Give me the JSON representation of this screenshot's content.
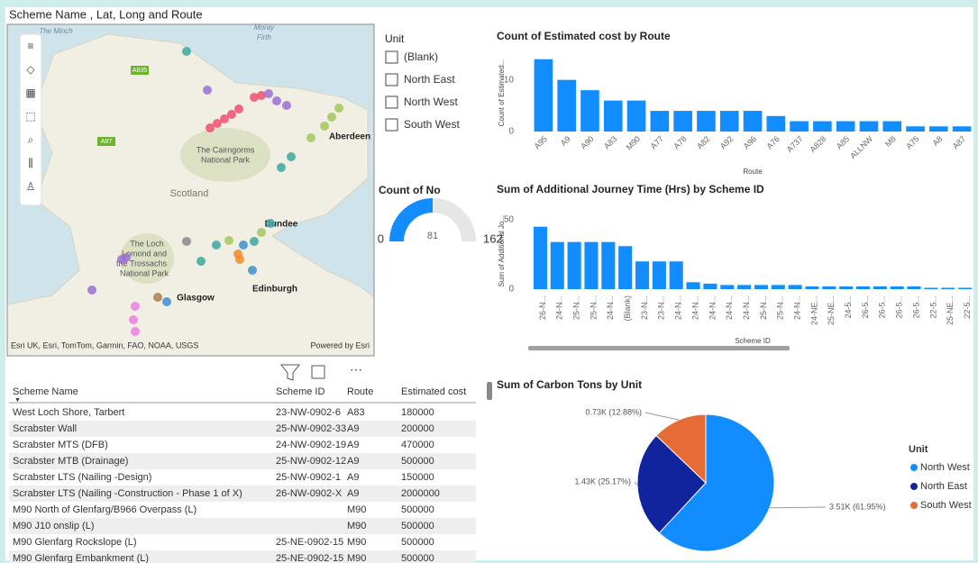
{
  "map": {
    "title": "Scheme Name , Lat, Long and Route",
    "labels": [
      "The Minch",
      "Moray",
      "Firth",
      "A835",
      "A87",
      "The Cairngorms",
      "National Park",
      "Aberdeen",
      "Scotland",
      "Dundee",
      "The Loch",
      "Lomond and",
      "the Trossachs",
      "National Park",
      "Glasgow",
      "Edinburgh"
    ],
    "attribution": "Esri UK, Esri, TomTom, Garmin, FAO, NOAA, USGS",
    "powered_by": "Powered by Esri"
  },
  "slicer": {
    "title": "Unit",
    "options": [
      "(Blank)",
      "North East",
      "North West",
      "South West"
    ]
  },
  "chart_data": [
    {
      "type": "bar",
      "title": "Count of Estimated cost by Route",
      "y_label": "Count of Estimated...",
      "x_label": "Route",
      "categories": [
        "A95",
        "A9",
        "A90",
        "A83",
        "M90",
        "A77",
        "A78",
        "A82",
        "A92",
        "A96",
        "A76",
        "A737",
        "A828",
        "A85",
        "ALLNW",
        "M8",
        "A75",
        "A8",
        "A87"
      ],
      "values": [
        14,
        10,
        8,
        6,
        6,
        4,
        4,
        4,
        4,
        4,
        3,
        2,
        2,
        2,
        2,
        2,
        1,
        1,
        1
      ],
      "color": "#118dff",
      "ylim": [
        0,
        15
      ],
      "yticks": [
        0,
        10
      ]
    },
    {
      "type": "gauge",
      "title": "Count of No",
      "value": 81,
      "min": 0,
      "max": 162,
      "color": "#118dff"
    },
    {
      "type": "bar",
      "title": "Sum of Additional Journey Time (Hrs) by Scheme ID",
      "y_label": "Sum of Additional Jo...",
      "x_label": "Scheme ID",
      "categories": [
        "26-N...",
        "24-N...",
        "25-N...",
        "25-N...",
        "24-N...",
        "(Blank)",
        "23-N...",
        "23-N...",
        "24-N...",
        "24-N...",
        "24-N...",
        "24-N...",
        "24-N...",
        "25-N...",
        "25-N...",
        "24-N...",
        "24-NE...",
        "25-NE...",
        "24-5...",
        "26-5...",
        "26-5...",
        "26-5...",
        "26-5...",
        "22-5...",
        "25-NE...",
        "22-5..."
      ],
      "values": [
        45,
        34,
        34,
        34,
        34,
        31,
        20,
        20,
        20,
        5,
        4,
        3,
        3,
        3,
        3,
        3,
        2,
        2,
        2,
        2,
        2,
        2,
        2,
        1,
        1,
        1
      ],
      "color": "#118dff",
      "ylim": [
        0,
        55
      ],
      "yticks": [
        0,
        50
      ]
    },
    {
      "type": "pie",
      "title": "Sum of Carbon Tons by Unit",
      "legend_title": "Unit",
      "categories": [
        "North West",
        "North East",
        "South West"
      ],
      "values": [
        3510,
        1430,
        730
      ],
      "value_labels": [
        "3.51K (61.95%)",
        "1.43K (25.17%)",
        "0.73K (12.88%)"
      ],
      "colors": [
        "#118dff",
        "#12239e",
        "#e66c37"
      ]
    }
  ],
  "table": {
    "columns": [
      "Scheme Name",
      "Scheme ID",
      "Route",
      "Estimated cost"
    ],
    "rows": [
      [
        "West Loch Shore, Tarbert",
        "23-NW-0902-6",
        "A83",
        180000
      ],
      [
        "Scrabster Wall",
        "25-NW-0902-33",
        "A9",
        200000
      ],
      [
        "Scrabster MTS (DFB)",
        "24-NW-0902-19",
        "A9",
        470000
      ],
      [
        "Scrabster MTB (Drainage)",
        "25-NW-0902-12",
        "A9",
        500000
      ],
      [
        "Scrabster LTS (Nailing -Design)",
        "25-NW-0902-1",
        "A9",
        150000
      ],
      [
        "Scrabster LTS (Nailing -Construction - Phase 1 of X)",
        "26-NW-0902-X",
        "A9",
        2000000
      ],
      [
        "M90 North of Glenfarg/B966 Overpass (L)",
        null,
        "M90",
        500000
      ],
      [
        "M90 J10 onslip (L)",
        null,
        "M90",
        500000
      ],
      [
        "M90 Glenfarg Rockslope (L)",
        "25-NE-0902-15",
        "M90",
        500000
      ],
      [
        "M90 Glenfarg Embankment (L)",
        "25-NE-0902-15",
        "M90",
        500000
      ]
    ]
  }
}
